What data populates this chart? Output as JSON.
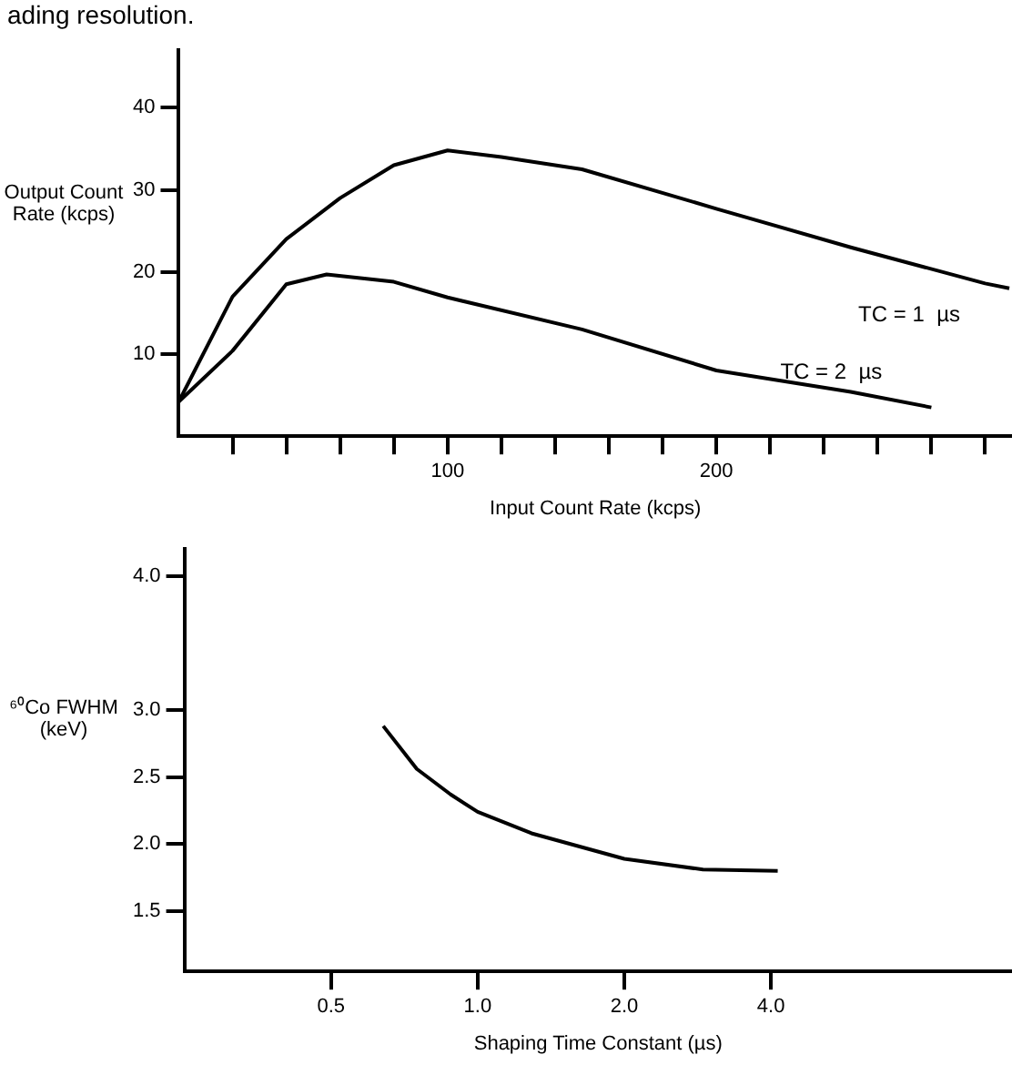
{
  "chart_data": [
    {
      "type": "line",
      "annotations": [
        "ading resolution."
      ],
      "xlabel": "Input Count Rate (kcps)",
      "ylabel": "Output Count Rate (kcps)",
      "xlim": [
        0,
        310
      ],
      "xticks": [
        {
          "value": 20,
          "label": null
        },
        {
          "value": 40,
          "label": null
        },
        {
          "value": 60,
          "label": null
        },
        {
          "value": 80,
          "label": null
        },
        100,
        {
          "value": 120,
          "label": null
        },
        {
          "value": 140,
          "label": null
        },
        {
          "value": 160,
          "label": null
        },
        {
          "value": 180,
          "label": null
        },
        200,
        {
          "value": 220,
          "label": null
        },
        {
          "value": 240,
          "label": null
        },
        {
          "value": 260,
          "label": null
        },
        {
          "value": 280,
          "label": null
        },
        {
          "value": 300,
          "label": null
        }
      ],
      "ylim": [
        0,
        47
      ],
      "yticks": [
        10,
        20,
        30,
        40
      ],
      "grid": false,
      "marker": "none",
      "line_style": "solid",
      "series": [
        {
          "name": "TC = 1  µs",
          "color": "#000000",
          "x": [
            0,
            20,
            40,
            60,
            80,
            100,
            120,
            150,
            200,
            250,
            300,
            309
          ],
          "values": [
            4.2,
            17,
            24,
            29,
            33,
            34.8,
            34,
            32.5,
            27.7,
            23,
            18.6,
            18
          ]
        },
        {
          "name": "TC = 2  µs",
          "color": "#000000",
          "x": [
            0,
            20,
            40,
            55,
            80,
            100,
            150,
            200,
            250,
            280
          ],
          "values": [
            4.2,
            10.4,
            18.5,
            19.7,
            18.8,
            16.9,
            13,
            8,
            5.4,
            3.5
          ]
        }
      ]
    },
    {
      "type": "line",
      "xlabel": "Shaping Time Constant (µs)",
      "ylabel": "⁶⁰Co FWHM (keV)",
      "log": "x",
      "xlim": [
        0.25,
        12.5
      ],
      "xticks": [
        0.5,
        {
          "value": 1,
          "label": "1.0"
        },
        {
          "value": 2,
          "label": "2.0"
        },
        {
          "value": 4,
          "label": "4.0"
        }
      ],
      "ylim": [
        1.05,
        4.2
      ],
      "yticks": [
        1.5,
        {
          "value": 2,
          "label": "2.0"
        },
        2.5,
        {
          "value": 3,
          "label": "3.0"
        },
        {
          "value": 4,
          "label": "4.0"
        }
      ],
      "grid": false,
      "marker": "none",
      "line_style": "solid",
      "series": [
        {
          "color": "#000000",
          "x": [
            0.64,
            0.75,
            0.88,
            1.0,
            1.29,
            2.0,
            2.9,
            4.13
          ],
          "values": [
            2.88,
            2.56,
            2.37,
            2.24,
            2.08,
            1.89,
            1.81,
            1.8
          ]
        }
      ]
    }
  ]
}
